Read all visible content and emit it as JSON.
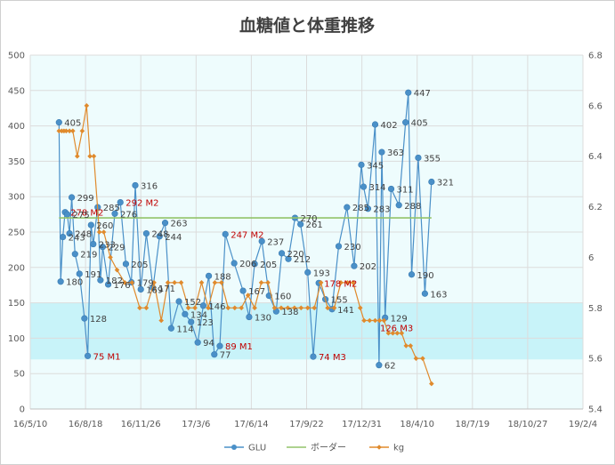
{
  "chart_data": {
    "type": "line",
    "title": "血糖値と体重推移",
    "xlabel": "",
    "ylabel": "",
    "y_left": {
      "lim": [
        0,
        500
      ],
      "ticks": [
        "0",
        "50",
        "100",
        "150",
        "200",
        "250",
        "300",
        "350",
        "400",
        "450",
        "500"
      ]
    },
    "y_right": {
      "lim": [
        5.4,
        6.8
      ],
      "ticks": [
        "5.4",
        "5.6",
        "5.8",
        "6",
        "6.2",
        "6.4",
        "6.6",
        "6.8"
      ]
    },
    "x_ticks": [
      "16/5/10",
      "16/8/18",
      "16/11/26",
      "17/3/6",
      "17/6/14",
      "17/9/22",
      "17/12/31",
      "18/4/10",
      "18/7/19",
      "18/10/27",
      "19/2/4"
    ],
    "x_range": [
      "2016-05-10",
      "2019-02-04"
    ],
    "shaded_bands": [
      {
        "from": 0,
        "to": 500,
        "color": "#eefcfd"
      },
      {
        "from": 70,
        "to": 150,
        "color": "#c8f3f9"
      }
    ],
    "grid": true,
    "legend_position": "bottom",
    "series": [
      {
        "name": "GLU",
        "axis": "left",
        "color": "#4a90c8",
        "points": [
          {
            "x": "2016-07-01",
            "y": 405,
            "label": "405"
          },
          {
            "x": "2016-07-04",
            "y": 180,
            "label": "180"
          },
          {
            "x": "2016-07-08",
            "y": 243,
            "label": "243"
          },
          {
            "x": "2016-07-12",
            "y": 278,
            "label": "278 M2",
            "note": true
          },
          {
            "x": "2016-07-16",
            "y": 275,
            "label": "275"
          },
          {
            "x": "2016-07-20",
            "y": 248,
            "label": "248"
          },
          {
            "x": "2016-07-24",
            "y": 299,
            "label": "299"
          },
          {
            "x": "2016-07-30",
            "y": 219,
            "label": "219"
          },
          {
            "x": "2016-08-07",
            "y": 191,
            "label": "191"
          },
          {
            "x": "2016-08-16",
            "y": 128,
            "label": "128"
          },
          {
            "x": "2016-08-22",
            "y": 75,
            "label": "75 M1",
            "note": true
          },
          {
            "x": "2016-08-28",
            "y": 260,
            "label": "260"
          },
          {
            "x": "2016-09-01",
            "y": 233,
            "label": "233"
          },
          {
            "x": "2016-09-09",
            "y": 285,
            "label": "285"
          },
          {
            "x": "2016-09-14",
            "y": 182,
            "label": "182"
          },
          {
            "x": "2016-09-18",
            "y": 229,
            "label": "229"
          },
          {
            "x": "2016-09-28",
            "y": 176,
            "label": "176"
          },
          {
            "x": "2016-10-10",
            "y": 276,
            "label": "276"
          },
          {
            "x": "2016-10-20",
            "y": 292,
            "label": "292 M2",
            "note": true
          },
          {
            "x": "2016-10-30",
            "y": 205,
            "label": "205"
          },
          {
            "x": "2016-11-09",
            "y": 179,
            "label": "179"
          },
          {
            "x": "2016-11-16",
            "y": 316,
            "label": "316"
          },
          {
            "x": "2016-11-26",
            "y": 169,
            "label": "169"
          },
          {
            "x": "2016-12-06",
            "y": 248,
            "label": "248"
          },
          {
            "x": "2016-12-18",
            "y": 171,
            "label": "171"
          },
          {
            "x": "2016-12-30",
            "y": 244,
            "label": "244"
          },
          {
            "x": "2017-01-09",
            "y": 263,
            "label": "263"
          },
          {
            "x": "2017-01-20",
            "y": 114,
            "label": "114"
          },
          {
            "x": "2017-02-03",
            "y": 152,
            "label": "152"
          },
          {
            "x": "2017-02-14",
            "y": 134,
            "label": "134"
          },
          {
            "x": "2017-02-25",
            "y": 123,
            "label": "123"
          },
          {
            "x": "2017-03-09",
            "y": 94,
            "label": "94"
          },
          {
            "x": "2017-03-19",
            "y": 146,
            "label": "146"
          },
          {
            "x": "2017-03-29",
            "y": 188,
            "label": "188"
          },
          {
            "x": "2017-04-08",
            "y": 77,
            "label": "77"
          },
          {
            "x": "2017-04-18",
            "y": 89,
            "label": "89 M1",
            "note": true
          },
          {
            "x": "2017-04-28",
            "y": 247,
            "label": "247 M2",
            "note": true
          },
          {
            "x": "2017-05-14",
            "y": 206,
            "label": "206"
          },
          {
            "x": "2017-05-30",
            "y": 167,
            "label": "167"
          },
          {
            "x": "2017-06-10",
            "y": 130,
            "label": "130"
          },
          {
            "x": "2017-06-20",
            "y": 205,
            "label": "205"
          },
          {
            "x": "2017-07-03",
            "y": 237,
            "label": "237"
          },
          {
            "x": "2017-07-16",
            "y": 160,
            "label": "160"
          },
          {
            "x": "2017-07-29",
            "y": 138,
            "label": "138"
          },
          {
            "x": "2017-08-08",
            "y": 220,
            "label": "220"
          },
          {
            "x": "2017-08-20",
            "y": 212,
            "label": "212"
          },
          {
            "x": "2017-09-01",
            "y": 270,
            "label": "270"
          },
          {
            "x": "2017-09-11",
            "y": 261,
            "label": "261"
          },
          {
            "x": "2017-09-24",
            "y": 193,
            "label": "193"
          },
          {
            "x": "2017-10-04",
            "y": 74,
            "label": "74 M3",
            "note": true
          },
          {
            "x": "2017-10-14",
            "y": 178,
            "label": "178 M2",
            "note": true
          },
          {
            "x": "2017-10-26",
            "y": 155,
            "label": "155"
          },
          {
            "x": "2017-11-07",
            "y": 141,
            "label": "141"
          },
          {
            "x": "2017-11-19",
            "y": 230,
            "label": "230"
          },
          {
            "x": "2017-12-04",
            "y": 285,
            "label": "285"
          },
          {
            "x": "2017-12-17",
            "y": 202,
            "label": "202"
          },
          {
            "x": "2017-12-30",
            "y": 345,
            "label": "345"
          },
          {
            "x": "2018-01-03",
            "y": 314,
            "label": "314"
          },
          {
            "x": "2018-01-11",
            "y": 283,
            "label": "283"
          },
          {
            "x": "2018-01-24",
            "y": 402,
            "label": "402"
          },
          {
            "x": "2018-01-31",
            "y": 62,
            "label": "62"
          },
          {
            "x": "2018-02-05",
            "y": 363,
            "label": "363"
          },
          {
            "x": "2018-02-11",
            "y": 129,
            "label": "129"
          },
          {
            "x": "2018-02-22",
            "y": 311,
            "label": "311"
          },
          {
            "x": "2018-03-08",
            "y": 288,
            "label": "288"
          },
          {
            "x": "2018-03-20",
            "y": 405,
            "label": "405"
          },
          {
            "x": "2018-03-25",
            "y": 447,
            "label": "447"
          },
          {
            "x": "2018-03-31",
            "y": 190,
            "label": "190"
          },
          {
            "x": "2018-04-12",
            "y": 355,
            "label": "355"
          },
          {
            "x": "2018-04-24",
            "y": 163,
            "label": "163"
          },
          {
            "x": "2018-05-06",
            "y": 321,
            "label": "321"
          }
        ]
      },
      {
        "name": "ボーダー",
        "axis": "left",
        "color": "#92c36a",
        "points": [
          {
            "x": "2016-07-01",
            "y": 270
          },
          {
            "x": "2018-05-06",
            "y": 270
          }
        ]
      },
      {
        "name": "kg",
        "axis": "right",
        "color": "#e08a2c",
        "points": [
          {
            "x": "2016-07-01",
            "y": 6.5
          },
          {
            "x": "2016-07-06",
            "y": 6.5
          },
          {
            "x": "2016-07-10",
            "y": 6.5
          },
          {
            "x": "2016-07-14",
            "y": 6.5
          },
          {
            "x": "2016-07-20",
            "y": 6.5
          },
          {
            "x": "2016-07-26",
            "y": 6.5
          },
          {
            "x": "2016-08-03",
            "y": 6.4
          },
          {
            "x": "2016-08-12",
            "y": 6.5
          },
          {
            "x": "2016-08-20",
            "y": 6.6
          },
          {
            "x": "2016-08-26",
            "y": 6.4
          },
          {
            "x": "2016-09-02",
            "y": 6.4
          },
          {
            "x": "2016-09-12",
            "y": 6.1
          },
          {
            "x": "2016-09-20",
            "y": 6.1
          },
          {
            "x": "2016-10-02",
            "y": 6.0
          },
          {
            "x": "2016-10-14",
            "y": 5.95
          },
          {
            "x": "2016-10-28",
            "y": 5.9
          },
          {
            "x": "2016-11-10",
            "y": 5.9
          },
          {
            "x": "2016-11-24",
            "y": 5.8
          },
          {
            "x": "2016-12-06",
            "y": 5.8
          },
          {
            "x": "2016-12-20",
            "y": 5.9
          },
          {
            "x": "2017-01-02",
            "y": 5.75
          },
          {
            "x": "2017-01-14",
            "y": 5.9
          },
          {
            "x": "2017-01-26",
            "y": 5.9
          },
          {
            "x": "2017-02-07",
            "y": 5.9
          },
          {
            "x": "2017-02-20",
            "y": 5.8
          },
          {
            "x": "2017-03-04",
            "y": 5.8
          },
          {
            "x": "2017-03-16",
            "y": 5.9
          },
          {
            "x": "2017-03-28",
            "y": 5.8
          },
          {
            "x": "2017-04-09",
            "y": 5.9
          },
          {
            "x": "2017-04-21",
            "y": 5.9
          },
          {
            "x": "2017-05-03",
            "y": 5.8
          },
          {
            "x": "2017-05-15",
            "y": 5.8
          },
          {
            "x": "2017-05-27",
            "y": 5.8
          },
          {
            "x": "2017-06-08",
            "y": 5.85
          },
          {
            "x": "2017-06-20",
            "y": 5.8
          },
          {
            "x": "2017-07-02",
            "y": 5.9
          },
          {
            "x": "2017-07-14",
            "y": 5.9
          },
          {
            "x": "2017-07-26",
            "y": 5.8
          },
          {
            "x": "2017-08-07",
            "y": 5.8
          },
          {
            "x": "2017-08-19",
            "y": 5.8
          },
          {
            "x": "2017-08-31",
            "y": 5.8
          },
          {
            "x": "2017-09-12",
            "y": 5.8
          },
          {
            "x": "2017-09-24",
            "y": 5.8
          },
          {
            "x": "2017-10-06",
            "y": 5.8
          },
          {
            "x": "2017-10-18",
            "y": 5.9
          },
          {
            "x": "2017-10-30",
            "y": 5.8
          },
          {
            "x": "2017-11-11",
            "y": 5.8
          },
          {
            "x": "2017-11-23",
            "y": 5.9
          },
          {
            "x": "2017-12-05",
            "y": 5.9
          },
          {
            "x": "2017-12-15",
            "y": 5.9
          },
          {
            "x": "2017-12-28",
            "y": 5.8
          },
          {
            "x": "2018-01-04",
            "y": 5.75
          },
          {
            "x": "2018-01-14",
            "y": 5.75
          },
          {
            "x": "2018-01-24",
            "y": 5.75
          },
          {
            "x": "2018-02-01",
            "y": 5.75
          },
          {
            "x": "2018-02-09",
            "y": 5.75
          },
          {
            "x": "2018-02-17",
            "y": 5.7
          },
          {
            "x": "2018-02-25",
            "y": 5.7
          },
          {
            "x": "2018-03-05",
            "y": 5.7
          },
          {
            "x": "2018-03-13",
            "y": 5.7
          },
          {
            "x": "2018-03-21",
            "y": 5.65
          },
          {
            "x": "2018-03-29",
            "y": 5.65
          },
          {
            "x": "2018-04-08",
            "y": 5.6
          },
          {
            "x": "2018-04-20",
            "y": 5.6
          },
          {
            "x": "2018-05-06",
            "y": 5.5
          }
        ],
        "annotations": [
          {
            "x": "2018-02-05",
            "y": 5.75,
            "label": "126 M3"
          }
        ]
      }
    ]
  }
}
